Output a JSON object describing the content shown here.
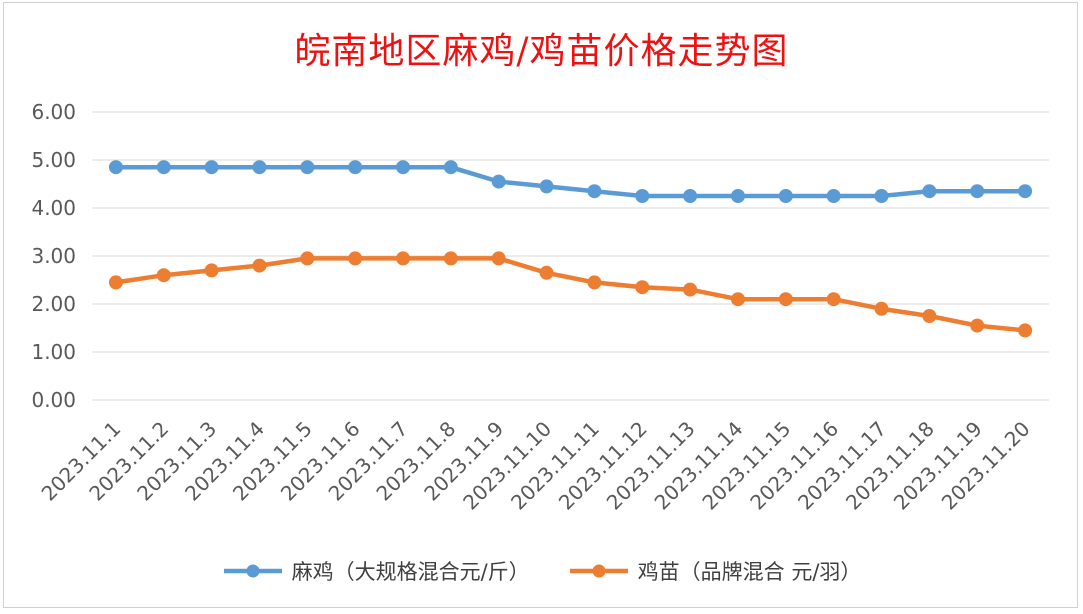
{
  "chart_data": {
    "type": "line",
    "title": "皖南地区麻鸡/鸡苗价格走势图",
    "xlabel": "",
    "ylabel": "",
    "categories": [
      "2023.11.1",
      "2023.11.2",
      "2023.11.3",
      "2023.11.4",
      "2023.11.5",
      "2023.11.6",
      "2023.11.7",
      "2023.11.8",
      "2023.11.9",
      "2023.11.10",
      "2023.11.11",
      "2023.11.12",
      "2023.11.13",
      "2023.11.14",
      "2023.11.15",
      "2023.11.16",
      "2023.11.17",
      "2023.11.18",
      "2023.11.19",
      "2023.11.20"
    ],
    "ylim": [
      0,
      6
    ],
    "yticks": [
      "0.00",
      "1.00",
      "2.00",
      "3.00",
      "4.00",
      "5.00",
      "6.00"
    ],
    "grid": true,
    "legend_position": "bottom",
    "series": [
      {
        "name": "麻鸡（大规格混合元/斤）",
        "color": "#5b9bd5",
        "values": [
          4.85,
          4.85,
          4.85,
          4.85,
          4.85,
          4.85,
          4.85,
          4.85,
          4.55,
          4.45,
          4.35,
          4.25,
          4.25,
          4.25,
          4.25,
          4.25,
          4.25,
          4.35,
          4.35,
          4.35
        ]
      },
      {
        "name": "鸡苗（品牌混合 元/羽）",
        "color": "#ed7d31",
        "values": [
          2.45,
          2.6,
          2.7,
          2.8,
          2.95,
          2.95,
          2.95,
          2.95,
          2.95,
          2.65,
          2.45,
          2.35,
          2.3,
          2.1,
          2.1,
          2.1,
          1.9,
          1.75,
          1.55,
          1.45
        ]
      }
    ]
  },
  "colors": {
    "title": "#ee1111",
    "gridline": "#d9d9d9",
    "axis_text": "#595959"
  }
}
